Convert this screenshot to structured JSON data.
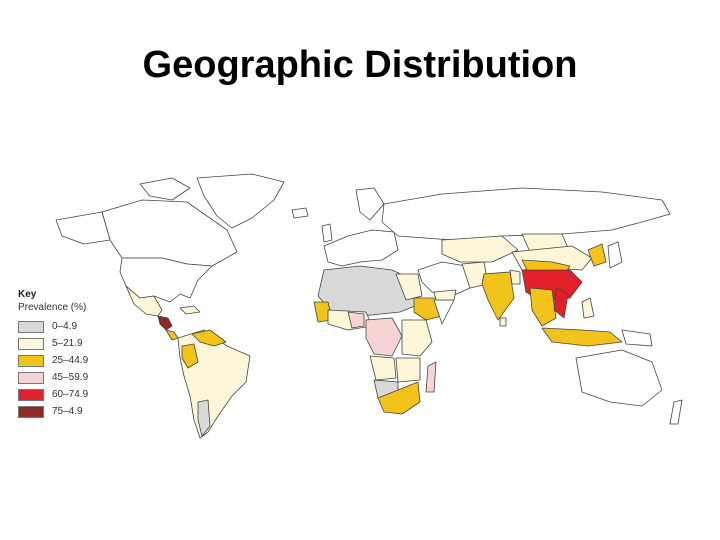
{
  "title": "Geographic Distribution",
  "legend": {
    "title": "Key",
    "subtitle": "Prevalence (%)",
    "items": [
      {
        "label": "0–4.9",
        "color": "#d9d9d9"
      },
      {
        "label": "5–21.9",
        "color": "#fdf6d8"
      },
      {
        "label": "25–44.9",
        "color": "#f2c31a"
      },
      {
        "label": "45–59.9",
        "color": "#f7d4d4"
      },
      {
        "label": "60–74.9",
        "color": "#e2202a"
      },
      {
        "label": "75–4.9",
        "color": "#8e2b25"
      }
    ]
  }
}
